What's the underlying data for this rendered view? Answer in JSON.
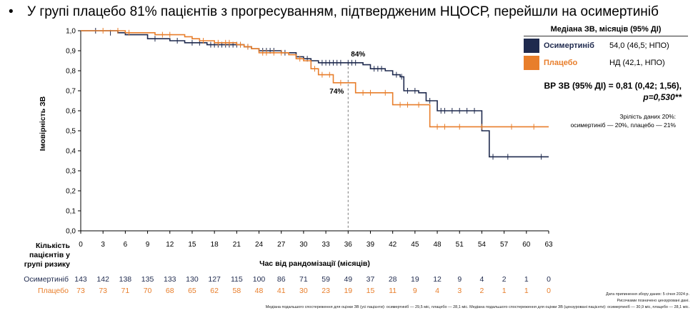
{
  "headline": "У групі плацебо 81% пацієнтів з прогресуванням, підтвердженим НЦОСР, перейшли на осимертиніб",
  "bullet": "•",
  "chart_data": {
    "type": "line",
    "subtype": "kaplan-meier",
    "xlabel": "Час від рандомізації (місяців)",
    "ylabel": "Імовірність ЗВ",
    "xlim": [
      0,
      63
    ],
    "ylim": [
      0,
      1
    ],
    "x_ticks": [
      0,
      3,
      6,
      9,
      12,
      15,
      18,
      21,
      24,
      27,
      30,
      33,
      36,
      39,
      42,
      45,
      48,
      51,
      54,
      57,
      60,
      63
    ],
    "y_ticks": [
      0.0,
      0.1,
      0.2,
      0.3,
      0.4,
      0.5,
      0.6,
      0.7,
      0.8,
      0.9,
      1.0
    ],
    "y_tick_labels": [
      "0,0",
      "0,1",
      "0,2",
      "0,3",
      "0,4",
      "0,5",
      "0,6",
      "0,7",
      "0,8",
      "0,9",
      "1,0"
    ],
    "reference_x": 36,
    "series": [
      {
        "name": "Осимертиніб",
        "color": "#1f2a4e",
        "steps": [
          [
            0,
            1.0
          ],
          [
            5,
            0.99
          ],
          [
            6,
            0.98
          ],
          [
            9,
            0.96
          ],
          [
            12,
            0.95
          ],
          [
            14,
            0.94
          ],
          [
            17,
            0.93
          ],
          [
            22,
            0.92
          ],
          [
            23,
            0.91
          ],
          [
            24,
            0.9
          ],
          [
            27,
            0.89
          ],
          [
            29,
            0.87
          ],
          [
            30,
            0.86
          ],
          [
            31,
            0.85
          ],
          [
            32,
            0.84
          ],
          [
            38,
            0.83
          ],
          [
            39,
            0.81
          ],
          [
            41,
            0.8
          ],
          [
            42,
            0.78
          ],
          [
            43,
            0.77
          ],
          [
            43.5,
            0.7
          ],
          [
            45.5,
            0.69
          ],
          [
            46.5,
            0.65
          ],
          [
            48,
            0.6
          ],
          [
            54,
            0.5
          ],
          [
            55,
            0.37
          ],
          [
            63,
            0.37
          ]
        ],
        "censors": [
          [
            2,
            1.0
          ],
          [
            4,
            0.99
          ],
          [
            10,
            0.96
          ],
          [
            13,
            0.95
          ],
          [
            15,
            0.94
          ],
          [
            16,
            0.94
          ],
          [
            17.5,
            0.93
          ],
          [
            18,
            0.93
          ],
          [
            18.5,
            0.93
          ],
          [
            19,
            0.93
          ],
          [
            19.5,
            0.93
          ],
          [
            20,
            0.93
          ],
          [
            20.5,
            0.93
          ],
          [
            21,
            0.93
          ],
          [
            21.5,
            0.93
          ],
          [
            22.5,
            0.92
          ],
          [
            24.5,
            0.9
          ],
          [
            25,
            0.9
          ],
          [
            25.5,
            0.9
          ],
          [
            26,
            0.9
          ],
          [
            27.5,
            0.89
          ],
          [
            30.5,
            0.86
          ],
          [
            32.5,
            0.84
          ],
          [
            33,
            0.84
          ],
          [
            33.5,
            0.84
          ],
          [
            34,
            0.84
          ],
          [
            34.5,
            0.84
          ],
          [
            35,
            0.84
          ],
          [
            36,
            0.84
          ],
          [
            36.5,
            0.84
          ],
          [
            37,
            0.84
          ],
          [
            39.5,
            0.81
          ],
          [
            40,
            0.81
          ],
          [
            40.5,
            0.81
          ],
          [
            42.5,
            0.78
          ],
          [
            43.2,
            0.77
          ],
          [
            44,
            0.7
          ],
          [
            45,
            0.7
          ],
          [
            47,
            0.65
          ],
          [
            48.5,
            0.6
          ],
          [
            49,
            0.6
          ],
          [
            50,
            0.6
          ],
          [
            51,
            0.6
          ],
          [
            52,
            0.6
          ],
          [
            53,
            0.6
          ],
          [
            55.5,
            0.37
          ],
          [
            57.5,
            0.37
          ],
          [
            62,
            0.37
          ]
        ]
      },
      {
        "name": "Плацебо",
        "color": "#e87e2b",
        "steps": [
          [
            0,
            1.0
          ],
          [
            6,
            0.99
          ],
          [
            9,
            0.99
          ],
          [
            10,
            0.98
          ],
          [
            14,
            0.97
          ],
          [
            15,
            0.96
          ],
          [
            16,
            0.95
          ],
          [
            18,
            0.94
          ],
          [
            21,
            0.93
          ],
          [
            22,
            0.92
          ],
          [
            23,
            0.91
          ],
          [
            24,
            0.89
          ],
          [
            28,
            0.88
          ],
          [
            29,
            0.86
          ],
          [
            30,
            0.85
          ],
          [
            31,
            0.81
          ],
          [
            32,
            0.78
          ],
          [
            33,
            0.78
          ],
          [
            34,
            0.74
          ],
          [
            36,
            0.74
          ],
          [
            37,
            0.69
          ],
          [
            40,
            0.69
          ],
          [
            42,
            0.63
          ],
          [
            45,
            0.63
          ],
          [
            46,
            0.63
          ],
          [
            47,
            0.52
          ],
          [
            63,
            0.52
          ]
        ],
        "censors": [
          [
            3,
            1.0
          ],
          [
            5,
            1.0
          ],
          [
            6.5,
            0.99
          ],
          [
            11,
            0.98
          ],
          [
            12,
            0.98
          ],
          [
            16.5,
            0.95
          ],
          [
            18.5,
            0.94
          ],
          [
            19.5,
            0.94
          ],
          [
            20,
            0.94
          ],
          [
            21.5,
            0.93
          ],
          [
            22.5,
            0.92
          ],
          [
            24.5,
            0.89
          ],
          [
            25,
            0.89
          ],
          [
            26,
            0.89
          ],
          [
            27,
            0.89
          ],
          [
            29.5,
            0.86
          ],
          [
            31.5,
            0.81
          ],
          [
            32.5,
            0.78
          ],
          [
            33.5,
            0.78
          ],
          [
            35,
            0.74
          ],
          [
            38,
            0.69
          ],
          [
            39,
            0.69
          ],
          [
            41,
            0.69
          ],
          [
            43,
            0.63
          ],
          [
            44,
            0.63
          ],
          [
            45.5,
            0.63
          ],
          [
            48,
            0.52
          ],
          [
            49,
            0.52
          ],
          [
            51,
            0.52
          ],
          [
            54,
            0.52
          ],
          [
            58,
            0.52
          ],
          [
            61,
            0.52
          ]
        ]
      }
    ],
    "annotations": [
      {
        "text": "84%",
        "x": 36,
        "y": 0.84,
        "series": "Осимертиніб"
      },
      {
        "text": "74%",
        "x": 36,
        "y": 0.74,
        "series": "Плацебо"
      }
    ]
  },
  "legend": {
    "header": "Медіана ЗВ, місяців (95% ДІ)",
    "rows": [
      {
        "name": "Осимертиніб",
        "value": "54,0 (46,5; НПО)",
        "color": "#1f2a4e"
      },
      {
        "name": "Плацебо",
        "value": "НД (42,1, НПО)",
        "color": "#e87e2b"
      }
    ]
  },
  "hr": {
    "line1": "ВР ЗВ (95%  ДІ) = 0,81 (0,42; 1,56),",
    "line2": "p=0,530**"
  },
  "maturity": {
    "line1": "Зрілість даних 20%:",
    "line2": "осимертиніб — 20%, плацебо — 21%"
  },
  "risk_table": {
    "header": "Кількість пацієнтів у групі ризику",
    "rows": [
      {
        "name": "Осимертиніб",
        "color": "#1f2a4e",
        "values": [
          "143",
          "142",
          "138",
          "135",
          "133",
          "130",
          "127",
          "115",
          "100",
          "86",
          "71",
          "59",
          "49",
          "37",
          "28",
          "19",
          "12",
          "9",
          "4",
          "2",
          "1",
          "0"
        ]
      },
      {
        "name": "Плацебо",
        "color": "#e87e2b",
        "values": [
          "73",
          "73",
          "71",
          "70",
          "68",
          "65",
          "62",
          "58",
          "48",
          "41",
          "30",
          "23",
          "19",
          "15",
          "11",
          "9",
          "4",
          "3",
          "2",
          "1",
          "1",
          "0"
        ]
      }
    ]
  },
  "footnotes": [
    "Дата припинення збору даних: 5 січня 2024 р.",
    "Рисочками позначено цензуровані дані.",
    "Медіана подальшого спостереження для оцінки ЗВ (усі пацієнти): осимертиніб — 29,5 міс, плацебо — 28,1 міс. Медіана подальшого спостереження для оцінки ЗВ (цензуровані пацієнти): осимертиніб — 30,9 міс, плацебо — 28,1 міс."
  ]
}
